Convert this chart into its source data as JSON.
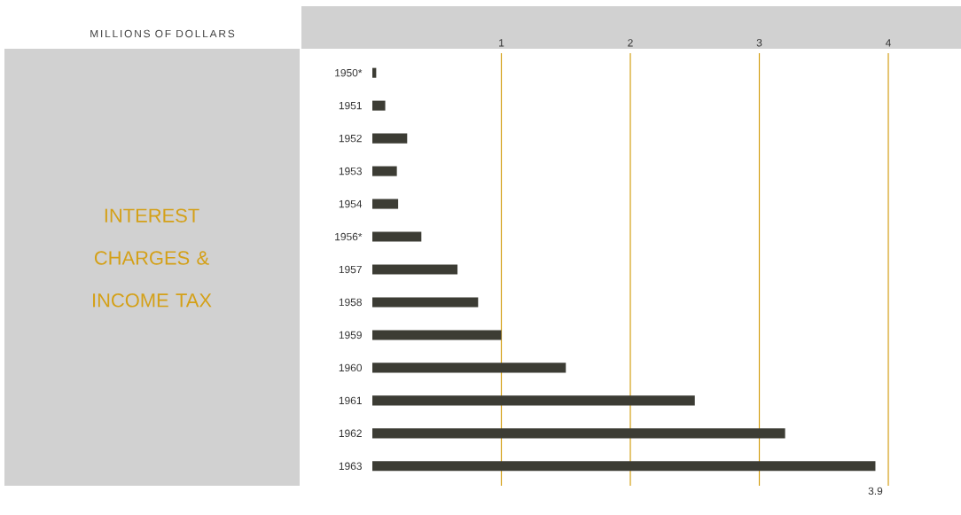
{
  "chart_data": {
    "type": "bar",
    "orientation": "horizontal",
    "title": "INTEREST CHARGES & INCOME TAX",
    "categories": [
      "1950*",
      "1951",
      "1952",
      "1953",
      "1954",
      "1956*",
      "1957",
      "1958",
      "1959",
      "1960",
      "1961",
      "1962",
      "1963"
    ],
    "values": [
      0.03,
      0.1,
      0.27,
      0.19,
      0.2,
      0.38,
      0.66,
      0.82,
      1.0,
      1.5,
      2.5,
      3.2,
      3.9
    ],
    "color": "#3c3c34",
    "xlim": [
      0,
      4
    ],
    "xticks": [
      1,
      2,
      3,
      4
    ],
    "grid": "x",
    "annotations": [
      "MILLIONS OF DOLLARS",
      {
        "text": "3.9",
        "x": 3.9,
        "y": "1963"
      }
    ]
  }
}
